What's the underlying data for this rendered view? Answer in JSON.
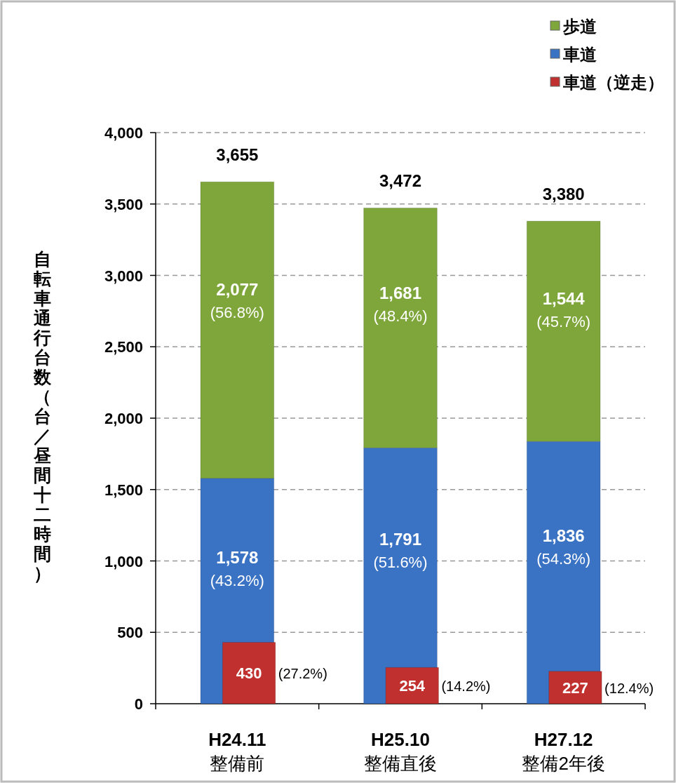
{
  "chart_data": {
    "type": "bar",
    "categories": [
      "H24.11\n整備前",
      "H25.10\n整備直後",
      "H27.12\n整備2年後"
    ],
    "series": [
      {
        "name": "歩道",
        "color": "#7ea63a",
        "values": [
          2077,
          1681,
          1544
        ],
        "base": [
          1578,
          1791,
          1836
        ],
        "value_labels": [
          "2,077\n(56.8%)",
          "1,681\n(48.4%)",
          "1,544\n(45.7%)"
        ]
      },
      {
        "name": "車道",
        "color": "#3a72c4",
        "values": [
          1578,
          1791,
          1836
        ],
        "value_labels": [
          "1,578\n(43.2%)",
          "1,791\n(51.6%)",
          "1,836\n(54.3%)"
        ]
      },
      {
        "name": "車道（逆走）",
        "color": "#c0302e",
        "values": [
          430,
          254,
          227
        ],
        "base": [
          0,
          0,
          0
        ],
        "value_labels": [
          "430\n(27.2%)",
          "254\n(14.2%)",
          "227\n(12.4%)"
        ]
      }
    ],
    "annotations": [
      {
        "text": "3,655",
        "x": "H24.11\n整備前",
        "y": 3655
      },
      {
        "text": "3,472",
        "x": "H25.10\n整備直後",
        "y": 3472
      },
      {
        "text": "3,380",
        "x": "H27.12\n整備2年後",
        "y": 3380
      }
    ],
    "ylabel": "自転車通行台数（台／昼間十二時間）",
    "ylim": [
      0,
      4000
    ],
    "yticks": [
      0,
      {
        "value": 500,
        "label": "500"
      },
      {
        "value": 1000,
        "label": "1,000"
      },
      {
        "value": 1500,
        "label": "1,500"
      },
      {
        "value": 2000,
        "label": "2,000"
      },
      {
        "value": 2500,
        "label": "2,500"
      },
      {
        "value": 3000,
        "label": "3,000"
      },
      {
        "value": 3500,
        "label": "3,500"
      },
      {
        "value": 4000,
        "label": "4,000"
      }
    ],
    "grid": "y",
    "legend": "top right"
  }
}
